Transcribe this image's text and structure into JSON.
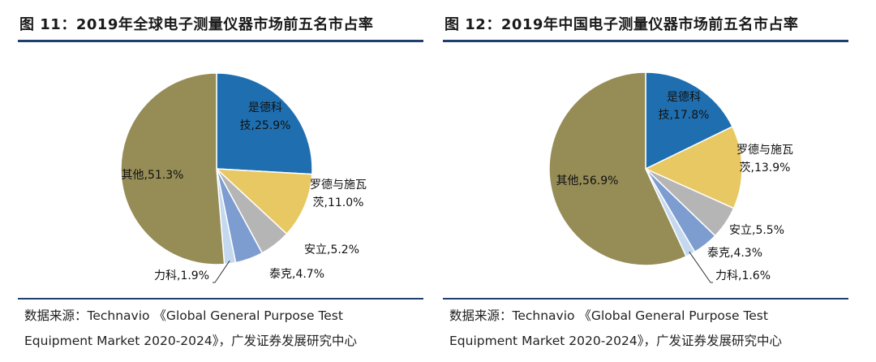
{
  "chart_data": [
    {
      "type": "pie",
      "title": "图 11：2019年全球电子测量仪器市场前五名市占率",
      "source_line1": "数据来源：Technavio 《Global General Purpose Test",
      "source_line2": "Equipment Market 2020-2024》，广发证券发展研究中心",
      "start": "12 o'clock, clockwise",
      "slices": [
        {
          "label_lines": [
            "是德科",
            "技,25.9%"
          ],
          "name": "是德科技",
          "value": 25.9,
          "color": "#1f6fb0",
          "label_color": "#111111"
        },
        {
          "label_lines": [
            "罗德与施瓦",
            "茨,11.0%"
          ],
          "name": "罗德与施瓦茨",
          "value": 11.0,
          "color": "#e8c862",
          "label_color": "#111111"
        },
        {
          "label_lines": [
            "安立,5.2%"
          ],
          "name": "安立",
          "value": 5.2,
          "color": "#b5b5b5",
          "label_color": "#111111"
        },
        {
          "label_lines": [
            "泰克,4.7%"
          ],
          "name": "泰克",
          "value": 4.7,
          "color": "#7d9dd0",
          "label_color": "#111111"
        },
        {
          "label_lines": [
            "力科,1.9%"
          ],
          "name": "力科",
          "value": 1.9,
          "color": "#c4d8ef",
          "label_color": "#111111"
        },
        {
          "label_lines": [
            "其他,51.3%"
          ],
          "name": "其他",
          "value": 51.3,
          "color": "#958c56",
          "label_color": "#111111"
        }
      ]
    },
    {
      "type": "pie",
      "title": "图 12：2019年中国电子测量仪器市场前五名市占率",
      "source_line1": "数据来源：Technavio 《Global General Purpose Test",
      "source_line2": "Equipment Market 2020-2024》，广发证券发展研究中心",
      "start": "12 o'clock, clockwise",
      "slices": [
        {
          "label_lines": [
            "是德科",
            "技,17.8%"
          ],
          "name": "是德科技",
          "value": 17.8,
          "color": "#1f6fb0",
          "label_color": "#111111"
        },
        {
          "label_lines": [
            "罗德与施瓦",
            "茨,13.9%"
          ],
          "name": "罗德与施瓦茨",
          "value": 13.9,
          "color": "#e8c862",
          "label_color": "#111111"
        },
        {
          "label_lines": [
            "安立,5.5%"
          ],
          "name": "安立",
          "value": 5.5,
          "color": "#b5b5b5",
          "label_color": "#111111"
        },
        {
          "label_lines": [
            "泰克,4.3%"
          ],
          "name": "泰克",
          "value": 4.3,
          "color": "#7d9dd0",
          "label_color": "#111111"
        },
        {
          "label_lines": [
            "力科,1.6%"
          ],
          "name": "力科",
          "value": 1.6,
          "color": "#c4d8ef",
          "label_color": "#111111"
        },
        {
          "label_lines": [
            "其他,56.9%"
          ],
          "name": "其他",
          "value": 56.9,
          "color": "#958c56",
          "label_color": "#111111"
        }
      ]
    }
  ]
}
